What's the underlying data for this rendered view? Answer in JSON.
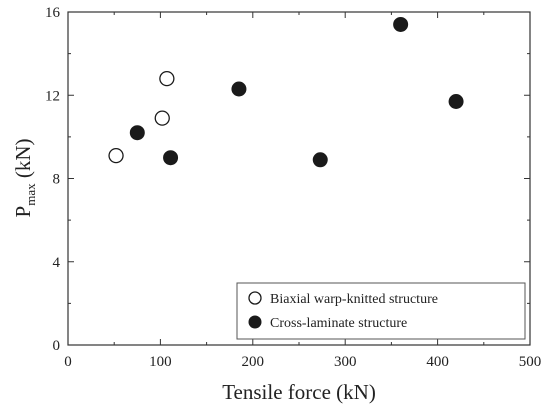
{
  "chart_data": {
    "type": "scatter",
    "xlabel": "Tensile force (kN)",
    "ylabel_main": "P",
    "ylabel_sub": "max",
    "ylabel_unit": " (kN)",
    "xlim": [
      0,
      500
    ],
    "ylim": [
      0,
      16
    ],
    "xticks": [
      0,
      100,
      200,
      300,
      400,
      500
    ],
    "yticks": [
      0,
      4,
      8,
      12,
      16
    ],
    "grid": false,
    "legend_position": "bottom-right",
    "series": [
      {
        "name": "Biaxial warp-knitted structure",
        "marker": "open-circle",
        "points": [
          {
            "x": 52,
            "y": 9.1
          },
          {
            "x": 102,
            "y": 10.9
          },
          {
            "x": 107,
            "y": 12.8
          }
        ]
      },
      {
        "name": "Cross-laminate structure",
        "marker": "filled-circle",
        "points": [
          {
            "x": 75,
            "y": 10.2
          },
          {
            "x": 111,
            "y": 9.0
          },
          {
            "x": 185,
            "y": 12.3
          },
          {
            "x": 273,
            "y": 8.9
          },
          {
            "x": 360,
            "y": 15.4
          },
          {
            "x": 420,
            "y": 11.7
          }
        ]
      }
    ],
    "colors": {
      "axis": "#333333",
      "marker": "#1a1a1a",
      "open_fill": "#ffffff"
    }
  }
}
